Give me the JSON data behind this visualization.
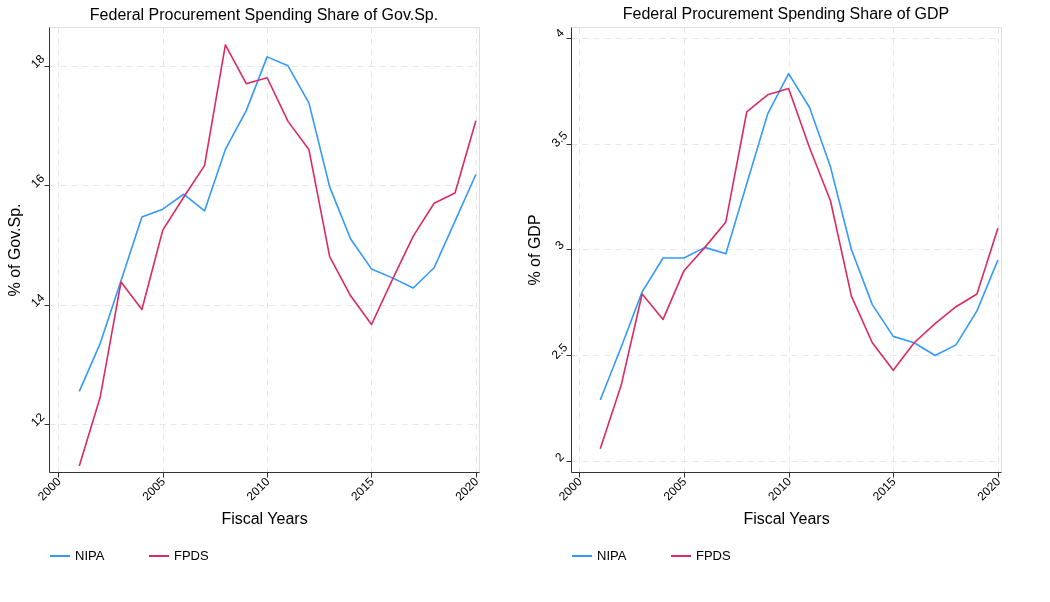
{
  "chart_data": [
    {
      "type": "line",
      "title": "Federal Procurement Spending Share of Gov.Sp.",
      "xlabel": "Fiscal Years",
      "ylabel": "% of Gov.Sp.",
      "x": [
        2001,
        2002,
        2003,
        2004,
        2005,
        2006,
        2007,
        2008,
        2009,
        2010,
        2011,
        2012,
        2013,
        2014,
        2015,
        2016,
        2017,
        2018,
        2019,
        2020
      ],
      "series": [
        {
          "name": "NIPA",
          "color": "#3399ff",
          "values": [
            12.55,
            13.35,
            14.4,
            15.47,
            15.6,
            15.85,
            15.57,
            16.6,
            17.25,
            18.15,
            18.0,
            17.38,
            15.97,
            15.1,
            14.6,
            14.45,
            14.28,
            14.62,
            15.4,
            16.18
          ]
        },
        {
          "name": "FPDS",
          "color": "#dc2a5f",
          "values": [
            11.3,
            12.45,
            14.38,
            13.92,
            15.25,
            15.8,
            16.33,
            18.35,
            17.7,
            17.8,
            17.07,
            16.6,
            14.8,
            14.15,
            13.67,
            14.42,
            15.15,
            15.7,
            15.87,
            17.08
          ]
        }
      ],
      "xlim": [
        1999.55,
        2020.15
      ],
      "xticks": [
        2000,
        2005,
        2010,
        2015,
        2020
      ],
      "ylim": [
        11.2,
        18.65
      ],
      "yticks": [
        12,
        14,
        16,
        18
      ],
      "grid": true,
      "legend": "bottom",
      "line_style": "solid"
    },
    {
      "type": "line",
      "title": "Federal Procurement Spending Share of GDP",
      "xlabel": "Fiscal Years",
      "ylabel": "% of GDP",
      "x": [
        2001,
        2002,
        2003,
        2004,
        2005,
        2006,
        2007,
        2008,
        2009,
        2010,
        2011,
        2012,
        2013,
        2014,
        2015,
        2016,
        2017,
        2018,
        2019,
        2020
      ],
      "series": [
        {
          "name": "NIPA",
          "color": "#3399ff",
          "values": [
            2.29,
            2.54,
            2.8,
            2.96,
            2.96,
            3.01,
            2.98,
            3.31,
            3.64,
            3.83,
            3.67,
            3.39,
            3.0,
            2.74,
            2.59,
            2.56,
            2.5,
            2.55,
            2.71,
            2.95
          ]
        },
        {
          "name": "FPDS",
          "color": "#dc2a5f",
          "values": [
            2.06,
            2.36,
            2.79,
            2.67,
            2.9,
            3.01,
            3.13,
            3.65,
            3.73,
            3.76,
            3.48,
            3.23,
            2.78,
            2.56,
            2.43,
            2.56,
            2.65,
            2.73,
            2.79,
            3.1
          ]
        }
      ],
      "xlim": [
        1999.6,
        2020.15
      ],
      "xticks": [
        2000,
        2005,
        2010,
        2015,
        2020
      ],
      "ylim": [
        1.95,
        4.05
      ],
      "yticks": [
        2,
        2.5,
        3,
        3.5,
        4
      ],
      "grid": true,
      "legend": "bottom",
      "line_style": "solid"
    }
  ]
}
